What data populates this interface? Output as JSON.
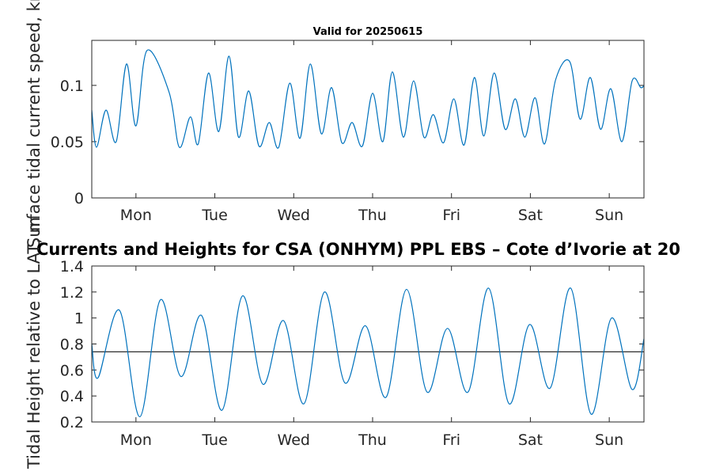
{
  "chart_data": [
    {
      "type": "line",
      "title": "Valid for 20250615",
      "ylabel": "Surface tidal current speed, kn",
      "ylim": [
        0,
        0.14
      ],
      "yticks": [
        0,
        0.05,
        0.1
      ],
      "ytick_labels": [
        "0",
        "0.05",
        "0.1"
      ],
      "xlim": [
        0,
        7
      ],
      "categories": [
        "Mon",
        "Tue",
        "Wed",
        "Thu",
        "Fri",
        "Sat",
        "Sun"
      ],
      "category_positions": [
        0.56,
        1.56,
        2.56,
        3.56,
        4.56,
        5.56,
        6.56
      ],
      "grid": false,
      "series": [
        {
          "color": "#0072BD",
          "x": [
            0.0,
            0.06,
            0.18,
            0.31,
            0.44,
            0.56,
            0.7,
            0.98,
            1.11,
            1.25,
            1.35,
            1.48,
            1.61,
            1.74,
            1.86,
            1.99,
            2.12,
            2.25,
            2.37,
            2.51,
            2.64,
            2.77,
            2.91,
            3.04,
            3.17,
            3.3,
            3.43,
            3.56,
            3.69,
            3.81,
            3.95,
            4.08,
            4.21,
            4.33,
            4.46,
            4.59,
            4.72,
            4.85,
            4.97,
            5.1,
            5.24,
            5.37,
            5.49,
            5.62,
            5.74,
            5.88,
            6.06,
            6.19,
            6.32,
            6.45,
            6.58,
            6.72,
            6.85,
            6.96,
            7.0
          ],
          "y": [
            0.078,
            0.045,
            0.078,
            0.05,
            0.119,
            0.064,
            0.131,
            0.094,
            0.045,
            0.072,
            0.048,
            0.111,
            0.059,
            0.126,
            0.054,
            0.095,
            0.046,
            0.067,
            0.045,
            0.102,
            0.053,
            0.119,
            0.057,
            0.098,
            0.049,
            0.067,
            0.046,
            0.093,
            0.05,
            0.112,
            0.054,
            0.104,
            0.054,
            0.074,
            0.049,
            0.088,
            0.047,
            0.107,
            0.055,
            0.111,
            0.061,
            0.088,
            0.054,
            0.089,
            0.048,
            0.105,
            0.121,
            0.07,
            0.107,
            0.061,
            0.097,
            0.05,
            0.104,
            0.098,
            0.1
          ]
        }
      ]
    },
    {
      "type": "line",
      "title": "Currents and Heights for CSA (ONHYM) PPL EBS  – Cote d’Ivorie at 20",
      "ylabel": "Tidal Height relative to LAT, m",
      "ylim": [
        0.2,
        1.4
      ],
      "yticks": [
        0.2,
        0.4,
        0.6,
        0.8,
        1.0,
        1.2,
        1.4
      ],
      "ytick_labels": [
        "0.2",
        "0.4",
        "0.6",
        "0.8",
        "1",
        "1.2",
        "1.4"
      ],
      "xlim": [
        0,
        7
      ],
      "categories": [
        "Mon",
        "Tue",
        "Wed",
        "Thu",
        "Fri",
        "Sat",
        "Sun"
      ],
      "category_positions": [
        0.56,
        1.56,
        2.56,
        3.56,
        4.56,
        5.56,
        6.56
      ],
      "grid": false,
      "reference_line": 0.74,
      "series": [
        {
          "color": "#0072BD",
          "x": [
            0.0,
            0.08,
            0.35,
            0.61,
            0.87,
            1.13,
            1.39,
            1.65,
            1.91,
            2.17,
            2.43,
            2.69,
            2.95,
            3.21,
            3.47,
            3.73,
            3.99,
            4.25,
            4.51,
            4.77,
            5.03,
            5.29,
            5.55,
            5.81,
            6.07,
            6.33,
            6.59,
            6.85,
            7.0
          ],
          "y": [
            0.8,
            0.54,
            1.06,
            0.24,
            1.14,
            0.55,
            1.02,
            0.29,
            1.17,
            0.49,
            0.98,
            0.34,
            1.2,
            0.5,
            0.94,
            0.39,
            1.22,
            0.43,
            0.92,
            0.43,
            1.23,
            0.34,
            0.95,
            0.46,
            1.23,
            0.26,
            1.0,
            0.45,
            0.84
          ]
        }
      ]
    }
  ]
}
